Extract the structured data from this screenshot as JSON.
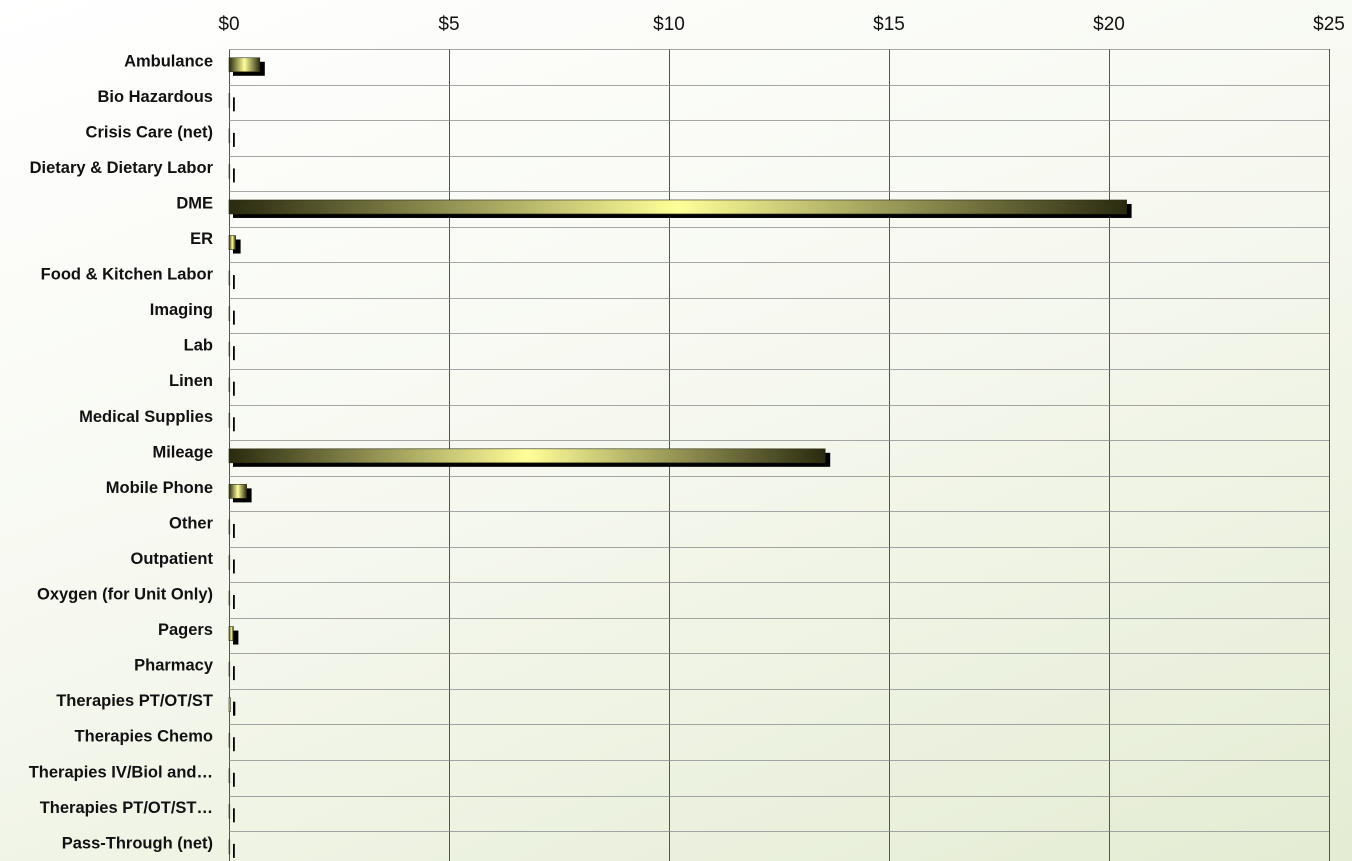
{
  "chart_data": {
    "type": "bar",
    "orientation": "horizontal",
    "title": "",
    "xlabel": "",
    "ylabel": "",
    "xlim": [
      0,
      25
    ],
    "x_ticks": [
      0,
      5,
      10,
      15,
      20,
      25
    ],
    "x_tick_labels": [
      "$0",
      "$5",
      "$10",
      "$15",
      "$20",
      "$25"
    ],
    "x_axis_position": "top",
    "grid": true,
    "legend": "none",
    "categories": [
      "Ambulance",
      "Bio Hazardous",
      "Crisis Care (net)",
      "Dietary & Dietary Labor",
      "DME",
      "ER",
      "Food & Kitchen Labor",
      "Imaging",
      "Lab",
      "Linen",
      "Medical Supplies",
      "Mileage",
      "Mobile Phone",
      "Other",
      "Outpatient",
      "Oxygen (for Unit Only)",
      "Pagers",
      "Pharmacy",
      "Therapies PT/OT/ST",
      "Therapies Chemo",
      "Therapies IV/Biol and…",
      "Therapies PT/OT/ST…",
      "Pass-Through (net)"
    ],
    "values": [
      0.7,
      0,
      0,
      0,
      20.4,
      0.15,
      0,
      0,
      0,
      0,
      0,
      13.55,
      0.4,
      0,
      0,
      0,
      0.1,
      0,
      0.03,
      0,
      0,
      0,
      0
    ],
    "colors": {
      "bar_center": "#ffff99",
      "bar_edge": "#2a2a10",
      "shadow": "#000000",
      "grid": "#555555",
      "text": "#111111"
    }
  }
}
